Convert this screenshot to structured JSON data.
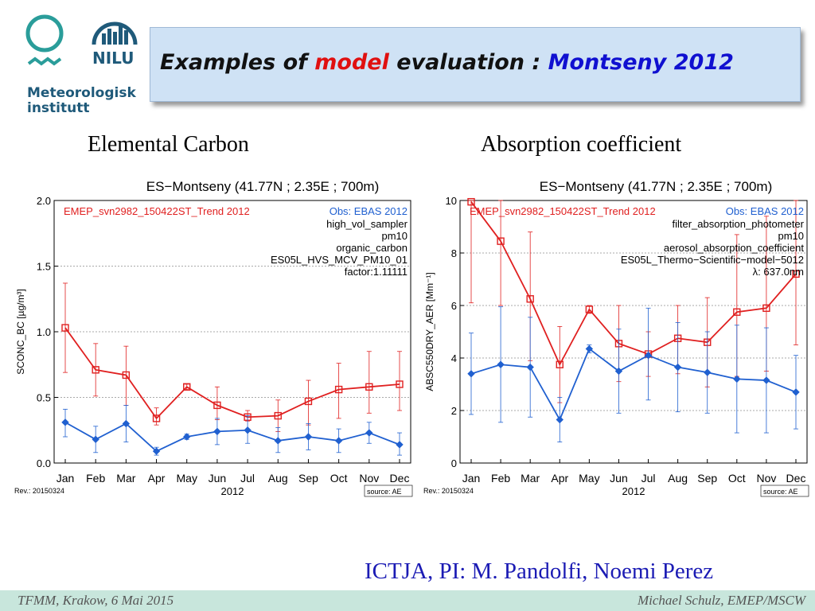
{
  "header": {
    "title_part1": "Examples of ",
    "title_part2": "model",
    "title_part3": " evaluation : ",
    "title_part4": "Montseny 2012",
    "colors": {
      "black": "#111111",
      "red": "#e01010",
      "blue": "#1010d0"
    }
  },
  "logos": {
    "met_name_line1": "Meteorologisk",
    "met_name_line2": "institutt",
    "nilu_text": "NILU"
  },
  "subtitles": {
    "left": "Elemental Carbon",
    "right": "Absorption coefficient"
  },
  "credit": "ICTJA, PI: M. Pandolfi, Noemi Perez",
  "footer": {
    "left": "TFMM, Krakow, 6 Mai 2015",
    "right": "Michael Schulz, EMEP/MSCW"
  },
  "chart_data": [
    {
      "type": "line",
      "title": "ES−Montseny (41.77N ; 2.35E ; 700m)",
      "ylabel": "SCONC_BC [µg/m³]",
      "xlabel": "2012",
      "categories": [
        "Jan",
        "Feb",
        "Mar",
        "Apr",
        "May",
        "Jun",
        "Jul",
        "Aug",
        "Sep",
        "Oct",
        "Nov",
        "Dec"
      ],
      "ylim": [
        0,
        2.0
      ],
      "yticks": [
        "0.0",
        "0.5",
        "1.0",
        "1.5",
        "2.0"
      ],
      "grid": true,
      "legend_model": "EMEP_svn2982_150422ST_Trend 2012",
      "legend_obs": "Obs: EBAS 2012",
      "info_lines": [
        "high_vol_sampler",
        "pm10",
        "organic_carbon",
        "ES05L_HVS_MCV_PM10_01",
        "factor:1.11111"
      ],
      "rev": "Rev.: 20150324",
      "source": "source: AE",
      "series": [
        {
          "name": "EMEP_svn2982_150422ST_Trend 2012",
          "color": "#e02020",
          "marker": "square",
          "values": [
            1.03,
            0.71,
            0.67,
            0.34,
            0.58,
            0.44,
            0.35,
            0.36,
            0.47,
            0.56,
            0.58,
            0.6
          ],
          "err_low": [
            0.69,
            0.51,
            0.44,
            0.29,
            0.56,
            0.33,
            0.32,
            0.24,
            0.29,
            0.34,
            0.38,
            0.4
          ],
          "err_high": [
            1.37,
            0.91,
            0.89,
            0.42,
            0.6,
            0.58,
            0.4,
            0.48,
            0.63,
            0.76,
            0.85,
            0.85
          ]
        },
        {
          "name": "Obs: EBAS 2012",
          "color": "#2060d0",
          "marker": "diamond",
          "values": [
            0.31,
            0.18,
            0.3,
            0.09,
            0.2,
            0.24,
            0.25,
            0.17,
            0.2,
            0.17,
            0.23,
            0.14
          ],
          "err_low": [
            0.2,
            0.08,
            0.16,
            0.06,
            0.18,
            0.14,
            0.15,
            0.08,
            0.1,
            0.08,
            0.15,
            0.06
          ],
          "err_high": [
            0.41,
            0.28,
            0.44,
            0.12,
            0.22,
            0.34,
            0.36,
            0.27,
            0.3,
            0.26,
            0.31,
            0.23
          ]
        }
      ]
    },
    {
      "type": "line",
      "title": "ES−Montseny (41.77N ; 2.35E ; 700m)",
      "ylabel": "ABSC550DRY_AER [Mm⁻¹]",
      "xlabel": "2012",
      "categories": [
        "Jan",
        "Feb",
        "Mar",
        "Apr",
        "May",
        "Jun",
        "Jul",
        "Aug",
        "Sep",
        "Oct",
        "Nov",
        "Dec"
      ],
      "ylim": [
        0,
        10
      ],
      "yticks": [
        "0",
        "2",
        "4",
        "6",
        "8",
        "10"
      ],
      "grid": true,
      "legend_model": "EMEP_svn2982_150422ST_Trend 2012",
      "legend_obs": "Obs: EBAS 2012",
      "info_lines": [
        "filter_absorption_photometer",
        "pm10",
        "aerosol_absorption_coefficient",
        "ES05L_Thermo−Scientific−model−5012",
        "λ: 637.0nm"
      ],
      "rev": "Rev.: 20150324",
      "source": "source: AE",
      "series": [
        {
          "name": "EMEP_svn2982_150422ST_Trend 2012",
          "color": "#e02020",
          "marker": "square",
          "values": [
            9.95,
            8.45,
            6.25,
            3.75,
            5.85,
            4.55,
            4.15,
            4.75,
            4.6,
            5.75,
            5.9,
            7.2
          ],
          "err_low": [
            6.1,
            6.0,
            3.9,
            2.3,
            5.7,
            3.1,
            3.3,
            3.4,
            2.9,
            3.3,
            3.5,
            4.5
          ],
          "err_high": [
            10.0,
            10.0,
            8.8,
            5.2,
            6.0,
            6.0,
            5.0,
            6.0,
            6.3,
            8.7,
            9.4,
            10.0
          ]
        },
        {
          "name": "Obs: EBAS 2012",
          "color": "#2060d0",
          "marker": "diamond",
          "values": [
            3.4,
            3.75,
            3.65,
            1.65,
            4.35,
            3.5,
            4.1,
            3.65,
            3.45,
            3.2,
            3.15,
            2.7
          ],
          "err_low": [
            1.85,
            1.55,
            1.75,
            0.8,
            4.2,
            1.9,
            2.4,
            1.95,
            1.9,
            1.15,
            1.15,
            1.3
          ],
          "err_high": [
            4.95,
            5.95,
            5.55,
            2.5,
            4.5,
            5.1,
            5.9,
            5.35,
            5.0,
            5.25,
            5.15,
            4.1
          ]
        }
      ]
    }
  ]
}
